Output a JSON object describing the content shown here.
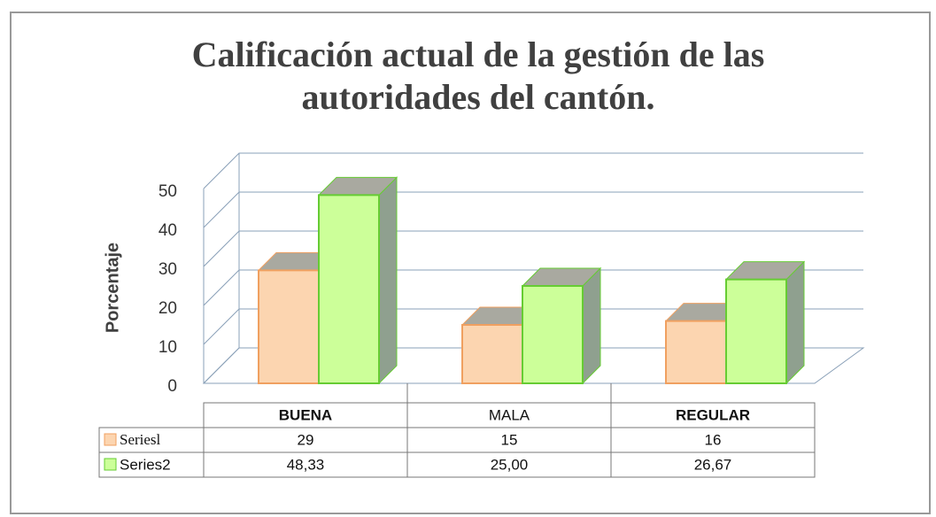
{
  "chart_data": {
    "type": "bar3d",
    "title": "Calificación actual de la gestión de las autoridades del cantón.",
    "y_label": "Porcentaje",
    "categories": [
      "BUENA",
      "MALA",
      "REGULAR"
    ],
    "series": [
      {
        "name": "Seriesl",
        "color": "#fcd5b0",
        "values": [
          29,
          15,
          16
        ]
      },
      {
        "name": "Series2",
        "color": "#ccff99",
        "values": [
          48.33,
          25.0,
          26.67
        ],
        "value_labels": [
          "48,33",
          "25,00",
          "26,67"
        ]
      }
    ],
    "ylim": [
      0,
      50
    ],
    "yticks": [
      0,
      10,
      20,
      30,
      40,
      50
    ],
    "grid": true,
    "data_table": true
  }
}
